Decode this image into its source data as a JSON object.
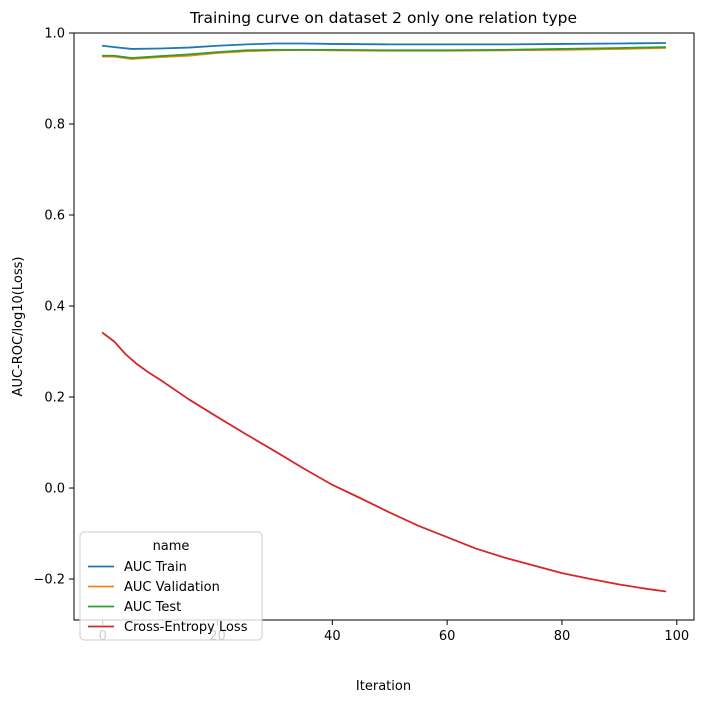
{
  "chart_data": {
    "type": "line",
    "title": "Training curve on dataset 2 only one relation type",
    "xlabel": "Iteration",
    "ylabel": "AUC-ROC/log10(Loss)",
    "xlim": [
      -5,
      103
    ],
    "ylim": [
      -0.29,
      1.0
    ],
    "xticks": [
      0,
      20,
      40,
      60,
      80,
      100
    ],
    "yticks": [
      -0.2,
      0.0,
      0.2,
      0.4,
      0.6,
      0.8,
      1.0
    ],
    "xtick_labels": [
      "0",
      "20",
      "40",
      "60",
      "80",
      "100"
    ],
    "ytick_labels": [
      "−0.2",
      "0.0",
      "0.2",
      "0.4",
      "0.6",
      "0.8",
      "1.0"
    ],
    "grid": false,
    "legend": {
      "title": "name",
      "position": "lower-left"
    },
    "series": [
      {
        "name": "AUC Train",
        "color": "#1f77b4",
        "x": [
          0,
          2,
          5,
          10,
          15,
          20,
          25,
          30,
          35,
          40,
          50,
          60,
          70,
          80,
          90,
          98
        ],
        "y": [
          0.972,
          0.969,
          0.965,
          0.966,
          0.968,
          0.972,
          0.975,
          0.977,
          0.977,
          0.976,
          0.975,
          0.975,
          0.975,
          0.976,
          0.977,
          0.978
        ]
      },
      {
        "name": "AUC Validation",
        "color": "#ff7f0e",
        "x": [
          0,
          2,
          5,
          10,
          15,
          20,
          25,
          30,
          35,
          40,
          50,
          60,
          70,
          80,
          90,
          98
        ],
        "y": [
          0.948,
          0.948,
          0.943,
          0.947,
          0.95,
          0.956,
          0.96,
          0.962,
          0.963,
          0.962,
          0.961,
          0.961,
          0.962,
          0.963,
          0.965,
          0.967
        ]
      },
      {
        "name": "AUC Test",
        "color": "#2ca02c",
        "x": [
          0,
          2,
          5,
          10,
          15,
          20,
          25,
          30,
          35,
          40,
          50,
          60,
          70,
          80,
          90,
          98
        ],
        "y": [
          0.95,
          0.95,
          0.945,
          0.949,
          0.953,
          0.958,
          0.962,
          0.963,
          0.963,
          0.963,
          0.962,
          0.962,
          0.963,
          0.965,
          0.967,
          0.969
        ]
      },
      {
        "name": "Cross-Entropy Loss",
        "color": "#d62728",
        "x": [
          0,
          2,
          4,
          6,
          8,
          10,
          15,
          20,
          25,
          30,
          35,
          40,
          45,
          50,
          55,
          60,
          65,
          70,
          75,
          80,
          85,
          90,
          95,
          98
        ],
        "y": [
          0.341,
          0.322,
          0.294,
          0.272,
          0.254,
          0.238,
          0.195,
          0.156,
          0.118,
          0.081,
          0.043,
          0.007,
          -0.023,
          -0.054,
          -0.083,
          -0.108,
          -0.133,
          -0.153,
          -0.17,
          -0.187,
          -0.2,
          -0.212,
          -0.222,
          -0.227
        ]
      }
    ]
  }
}
